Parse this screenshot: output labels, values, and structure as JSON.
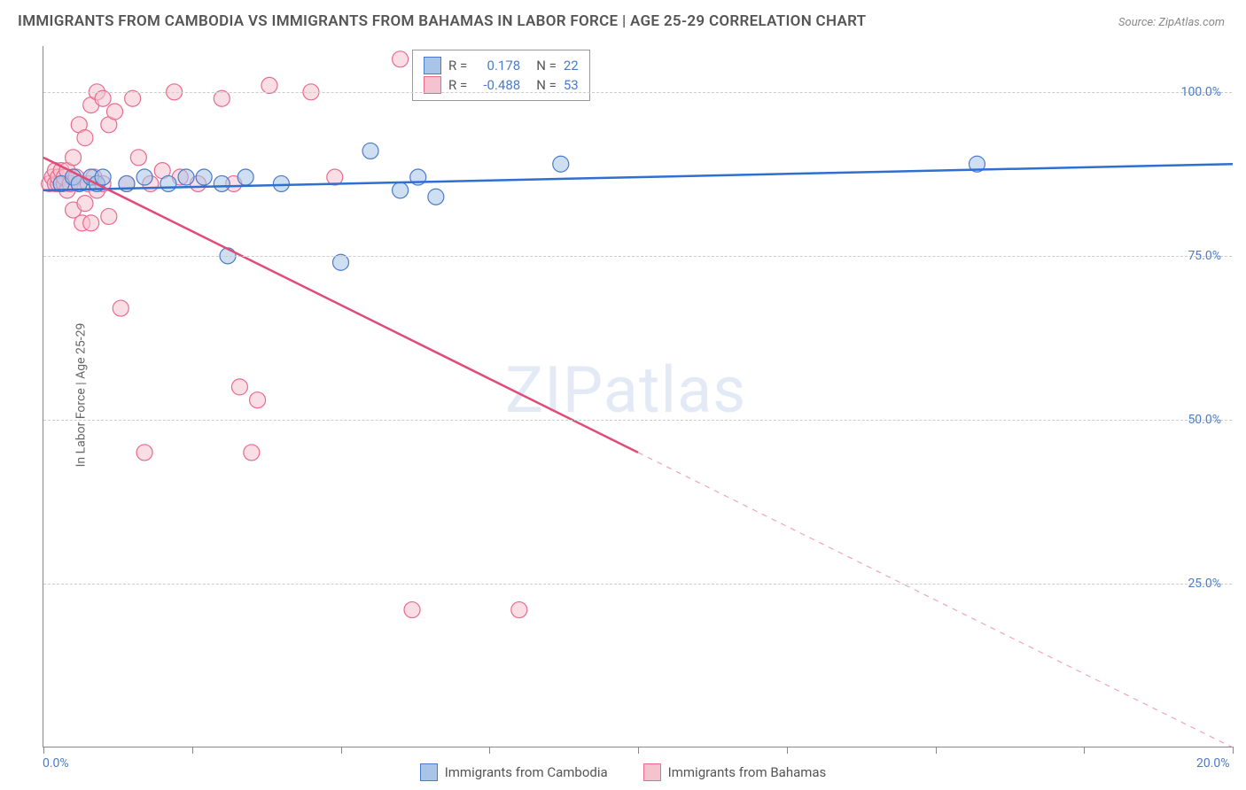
{
  "title": "IMMIGRANTS FROM CAMBODIA VS IMMIGRANTS FROM BAHAMAS IN LABOR FORCE | AGE 25-29 CORRELATION CHART",
  "source": "Source: ZipAtlas.com",
  "ylabel": "In Labor Force | Age 25-29",
  "watermark": "ZIPatlas",
  "chart": {
    "type": "scatter",
    "xlim": [
      0,
      20
    ],
    "ylim": [
      0,
      107
    ],
    "x_ticks": [
      0,
      2.5,
      5,
      7.5,
      10,
      12.5,
      15,
      17.5,
      20
    ],
    "x_tick_labels": {
      "0": "0.0%",
      "20": "20.0%"
    },
    "y_gridlines": [
      25,
      50,
      75,
      100
    ],
    "y_tick_labels": {
      "25": "25.0%",
      "50": "50.0%",
      "75": "75.0%",
      "100": "100.0%"
    },
    "grid_color": "#cccccc",
    "axis_color": "#888888",
    "background_color": "#ffffff",
    "tick_label_color": "#4a7bc8",
    "marker_radius": 9,
    "marker_opacity": 0.55,
    "line_width": 2.5,
    "series": [
      {
        "name": "Immigrants from Cambodia",
        "color_fill": "#a8c5e8",
        "color_stroke": "#4a7bc8",
        "line_color": "#2f6fd0",
        "R": "0.178",
        "N": "22",
        "regression": {
          "x1": 0,
          "y1": 85,
          "x2": 20,
          "y2": 89,
          "dash_from_x": null
        },
        "points": [
          [
            0.3,
            86
          ],
          [
            0.5,
            87
          ],
          [
            0.6,
            86
          ],
          [
            0.8,
            87
          ],
          [
            0.9,
            86
          ],
          [
            1.0,
            87
          ],
          [
            1.4,
            86
          ],
          [
            1.7,
            87
          ],
          [
            2.1,
            86
          ],
          [
            2.4,
            87
          ],
          [
            2.7,
            87
          ],
          [
            3.0,
            86
          ],
          [
            3.1,
            75
          ],
          [
            3.4,
            87
          ],
          [
            4.0,
            86
          ],
          [
            5.0,
            74
          ],
          [
            5.5,
            91
          ],
          [
            6.0,
            85
          ],
          [
            6.3,
            87
          ],
          [
            6.6,
            84
          ],
          [
            8.7,
            89
          ],
          [
            15.7,
            89
          ]
        ]
      },
      {
        "name": "Immigrants from Bahamas",
        "color_fill": "#f5c3cf",
        "color_stroke": "#e96b8f",
        "line_color": "#e24a78",
        "R": "-0.488",
        "N": "53",
        "regression": {
          "x1": 0,
          "y1": 90,
          "x2": 20,
          "y2": 0,
          "dash_from_x": 10
        },
        "points": [
          [
            0.1,
            86
          ],
          [
            0.15,
            87
          ],
          [
            0.2,
            86
          ],
          [
            0.2,
            88
          ],
          [
            0.25,
            86
          ],
          [
            0.25,
            87
          ],
          [
            0.3,
            86
          ],
          [
            0.3,
            88
          ],
          [
            0.35,
            86
          ],
          [
            0.35,
            87
          ],
          [
            0.4,
            85
          ],
          [
            0.4,
            88
          ],
          [
            0.45,
            86
          ],
          [
            0.5,
            90
          ],
          [
            0.5,
            82
          ],
          [
            0.55,
            87
          ],
          [
            0.6,
            95
          ],
          [
            0.6,
            86
          ],
          [
            0.65,
            80
          ],
          [
            0.7,
            93
          ],
          [
            0.7,
            83
          ],
          [
            0.75,
            86
          ],
          [
            0.8,
            98
          ],
          [
            0.8,
            80
          ],
          [
            0.85,
            87
          ],
          [
            0.9,
            100
          ],
          [
            0.9,
            85
          ],
          [
            1.0,
            99
          ],
          [
            1.0,
            86
          ],
          [
            1.1,
            95
          ],
          [
            1.1,
            81
          ],
          [
            1.2,
            97
          ],
          [
            1.3,
            67
          ],
          [
            1.4,
            86
          ],
          [
            1.5,
            99
          ],
          [
            1.6,
            90
          ],
          [
            1.7,
            45
          ],
          [
            1.8,
            86
          ],
          [
            2.0,
            88
          ],
          [
            2.2,
            100
          ],
          [
            2.3,
            87
          ],
          [
            2.6,
            86
          ],
          [
            3.0,
            99
          ],
          [
            3.2,
            86
          ],
          [
            3.3,
            55
          ],
          [
            3.5,
            45
          ],
          [
            3.6,
            53
          ],
          [
            3.8,
            101
          ],
          [
            4.5,
            100
          ],
          [
            4.9,
            87
          ],
          [
            6.0,
            105
          ],
          [
            6.2,
            21
          ],
          [
            8.0,
            21
          ]
        ]
      }
    ]
  },
  "stat_box": {
    "R_label": "R =",
    "N_label": "N ="
  }
}
